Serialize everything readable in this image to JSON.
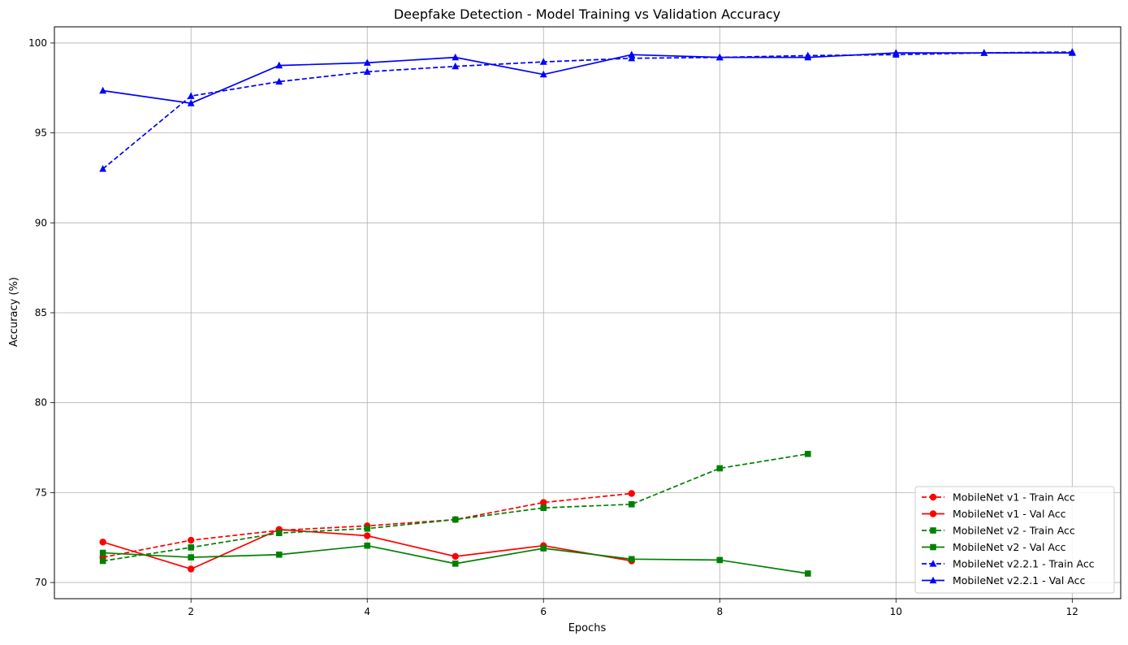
{
  "chart_data": {
    "type": "line",
    "title": "Deepfake Detection - Model Training vs Validation Accuracy",
    "xlabel": "Epochs",
    "ylabel": "Accuracy (%)",
    "xlim": [
      0.45,
      12.55
    ],
    "ylim": [
      69.1,
      100.9
    ],
    "xticks": [
      2,
      4,
      6,
      8,
      10,
      12
    ],
    "yticks": [
      70,
      75,
      80,
      85,
      90,
      95,
      100
    ],
    "grid": true,
    "legend_position": "lower-right",
    "series": [
      {
        "name": "MobileNet v1 - Train Acc",
        "color": "#ff0000",
        "linestyle": "dashed",
        "marker": "circle",
        "x": [
          1,
          2,
          3,
          4,
          5,
          6,
          7
        ],
        "values": [
          71.4,
          72.35,
          72.9,
          73.15,
          73.5,
          74.45,
          74.95
        ]
      },
      {
        "name": "MobileNet v1 - Val Acc",
        "color": "#ff0000",
        "linestyle": "solid",
        "marker": "circle",
        "x": [
          1,
          2,
          3,
          4,
          5,
          6,
          7
        ],
        "values": [
          72.25,
          70.75,
          72.95,
          72.6,
          71.45,
          72.05,
          71.2
        ]
      },
      {
        "name": "MobileNet v2 - Train Acc",
        "color": "#008000",
        "linestyle": "dashed",
        "marker": "square",
        "x": [
          1,
          2,
          3,
          4,
          5,
          6,
          7,
          8,
          9
        ],
        "values": [
          71.2,
          71.95,
          72.75,
          73.0,
          73.5,
          74.15,
          74.35,
          76.35,
          77.15
        ]
      },
      {
        "name": "MobileNet v2 - Val Acc",
        "color": "#008000",
        "linestyle": "solid",
        "marker": "square",
        "x": [
          1,
          2,
          3,
          4,
          5,
          6,
          7,
          8,
          9
        ],
        "values": [
          71.65,
          71.4,
          71.55,
          72.05,
          71.05,
          71.9,
          71.3,
          71.25,
          70.5
        ]
      },
      {
        "name": "MobileNet v2.2.1 - Train Acc",
        "color": "#0000ff",
        "linestyle": "dashed",
        "marker": "triangle",
        "x": [
          1,
          2,
          3,
          4,
          5,
          6,
          7,
          8,
          9,
          10,
          11,
          12
        ],
        "values": [
          93.0,
          97.05,
          97.85,
          98.4,
          98.7,
          98.95,
          99.15,
          99.2,
          99.3,
          99.35,
          99.45,
          99.5
        ]
      },
      {
        "name": "MobileNet v2.2.1 - Val Acc",
        "color": "#0000ff",
        "linestyle": "solid",
        "marker": "triangle",
        "x": [
          1,
          2,
          3,
          4,
          5,
          6,
          7,
          8,
          9,
          10,
          11,
          12
        ],
        "values": [
          97.35,
          96.65,
          98.75,
          98.9,
          99.2,
          98.25,
          99.35,
          99.2,
          99.2,
          99.45,
          99.45,
          99.45
        ]
      }
    ]
  }
}
